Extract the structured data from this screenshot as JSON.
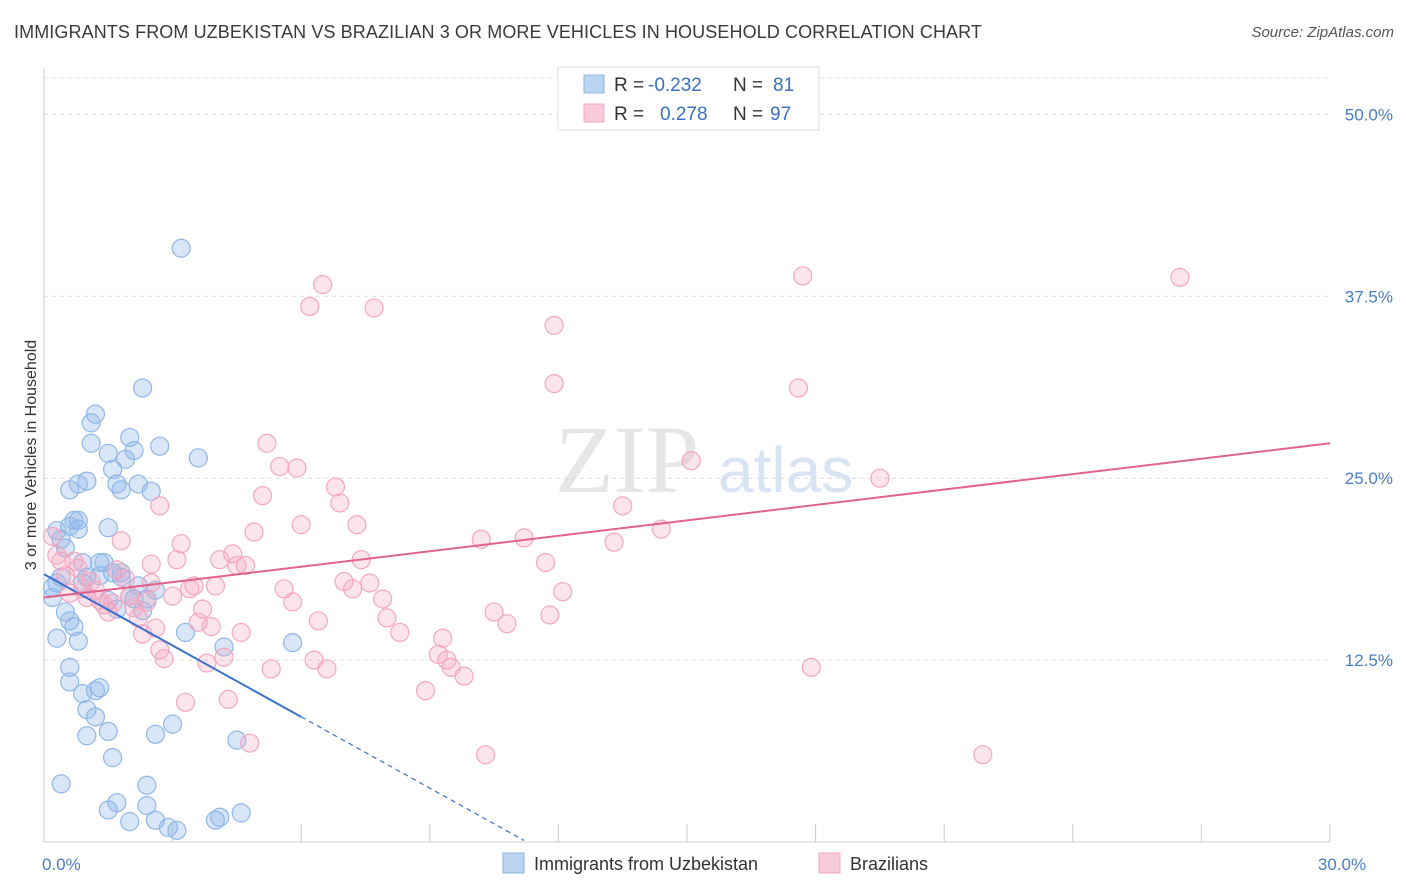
{
  "title": "IMMIGRANTS FROM UZBEKISTAN VS BRAZILIAN 3 OR MORE VEHICLES IN HOUSEHOLD CORRELATION CHART",
  "source": "Source: ZipAtlas.com",
  "watermark": {
    "zip": "ZIP",
    "atlas": "atlas"
  },
  "chart_data": {
    "type": "scatter",
    "ylabel": "3 or more Vehicles in Household",
    "xlim": [
      0,
      30
    ],
    "ylim": [
      0,
      52.5
    ],
    "x_ticks": [
      0,
      3,
      6,
      9,
      12,
      15,
      18,
      21,
      24,
      27,
      30
    ],
    "x_tick_labels": {
      "0": "0.0%",
      "30": "30.0%"
    },
    "y_ticks": [
      12.5,
      25.0,
      37.5,
      50.0
    ],
    "y_tick_labels": [
      "12.5%",
      "25.0%",
      "37.5%",
      "50.0%"
    ],
    "grid": true,
    "legend_position": "top-center",
    "legend": [
      {
        "r_label": "R =",
        "r_value": "-0.232",
        "n_label": "N =",
        "n_value": "81"
      },
      {
        "r_label": "R =",
        "r_value": "0.278",
        "n_label": "N =",
        "n_value": "97"
      }
    ],
    "series": [
      {
        "name": "Immigrants from Uzbekistan",
        "color": "#8fb7e8",
        "line_color": "#3b72cc",
        "trend": {
          "x0": 0,
          "y0": 18.4,
          "x1": 6.0,
          "y1": 8.6,
          "dash_to_x": 11.2
        },
        "points": [
          [
            0.2,
            17.5
          ],
          [
            0.3,
            17.8
          ],
          [
            0.2,
            16.8
          ],
          [
            0.4,
            20.8
          ],
          [
            0.3,
            21.4
          ],
          [
            0.5,
            20.2
          ],
          [
            0.4,
            18.2
          ],
          [
            0.6,
            21.7
          ],
          [
            0.7,
            22.1
          ],
          [
            0.8,
            22.1
          ],
          [
            0.8,
            21.5
          ],
          [
            0.9,
            19.2
          ],
          [
            0.6,
            24.2
          ],
          [
            0.8,
            24.6
          ],
          [
            1.0,
            24.8
          ],
          [
            1.1,
            27.4
          ],
          [
            1.1,
            28.8
          ],
          [
            1.2,
            29.4
          ],
          [
            1.3,
            19.2
          ],
          [
            1.4,
            19.2
          ],
          [
            1.5,
            21.6
          ],
          [
            1.6,
            25.6
          ],
          [
            1.5,
            26.7
          ],
          [
            1.9,
            26.3
          ],
          [
            1.7,
            24.6
          ],
          [
            1.8,
            24.2
          ],
          [
            2.0,
            27.8
          ],
          [
            2.1,
            26.9
          ],
          [
            2.2,
            24.6
          ],
          [
            2.3,
            31.2
          ],
          [
            2.5,
            24.1
          ],
          [
            2.7,
            27.2
          ],
          [
            3.2,
            40.8
          ],
          [
            3.6,
            26.4
          ],
          [
            0.3,
            14.0
          ],
          [
            0.5,
            15.8
          ],
          [
            0.6,
            15.2
          ],
          [
            0.7,
            14.8
          ],
          [
            0.8,
            13.8
          ],
          [
            0.6,
            12.0
          ],
          [
            0.6,
            11.0
          ],
          [
            0.9,
            10.2
          ],
          [
            1.0,
            9.1
          ],
          [
            1.2,
            10.4
          ],
          [
            1.3,
            10.6
          ],
          [
            1.2,
            8.6
          ],
          [
            1.5,
            7.6
          ],
          [
            1.0,
            7.3
          ],
          [
            1.6,
            5.8
          ],
          [
            0.4,
            4.0
          ],
          [
            1.7,
            2.7
          ],
          [
            1.5,
            2.2
          ],
          [
            2.0,
            1.4
          ],
          [
            2.4,
            2.5
          ],
          [
            2.4,
            3.9
          ],
          [
            2.6,
            1.5
          ],
          [
            2.9,
            1.0
          ],
          [
            3.1,
            0.8
          ],
          [
            4.0,
            1.5
          ],
          [
            4.1,
            1.7
          ],
          [
            4.6,
            2.0
          ],
          [
            2.6,
            7.4
          ],
          [
            3.0,
            8.1
          ],
          [
            4.5,
            7.0
          ],
          [
            1.3,
            18.3
          ],
          [
            1.6,
            18.5
          ],
          [
            1.8,
            18.5
          ],
          [
            1.8,
            18.2
          ],
          [
            2.1,
            16.7
          ],
          [
            2.3,
            15.9
          ],
          [
            2.4,
            16.7
          ],
          [
            3.3,
            14.4
          ],
          [
            4.2,
            13.4
          ],
          [
            5.8,
            13.7
          ],
          [
            2.6,
            17.3
          ],
          [
            1.5,
            16.6
          ],
          [
            1.7,
            16.0
          ],
          [
            2.0,
            16.9
          ],
          [
            1.0,
            18.2
          ],
          [
            0.9,
            17.8
          ],
          [
            2.2,
            17.6
          ]
        ]
      },
      {
        "name": "Brazilians",
        "color": "#f4a7c1",
        "line_color": "#e0638f",
        "trend": {
          "x0": 0,
          "y0": 16.8,
          "x1": 30,
          "y1": 27.4
        },
        "points": [
          [
            0.2,
            21.0
          ],
          [
            0.3,
            19.7
          ],
          [
            0.4,
            19.3
          ],
          [
            0.5,
            18.3
          ],
          [
            0.6,
            17.1
          ],
          [
            0.7,
            19.3
          ],
          [
            0.8,
            18.8
          ],
          [
            0.9,
            17.4
          ],
          [
            1.0,
            16.8
          ],
          [
            1.1,
            17.9
          ],
          [
            1.2,
            17.3
          ],
          [
            1.3,
            16.6
          ],
          [
            1.4,
            16.3
          ],
          [
            1.5,
            15.8
          ],
          [
            1.6,
            16.4
          ],
          [
            1.7,
            18.7
          ],
          [
            1.8,
            20.7
          ],
          [
            1.9,
            18.1
          ],
          [
            2.0,
            16.9
          ],
          [
            2.1,
            16.1
          ],
          [
            2.2,
            15.4
          ],
          [
            2.3,
            14.3
          ],
          [
            2.4,
            16.5
          ],
          [
            2.5,
            19.1
          ],
          [
            2.6,
            14.7
          ],
          [
            2.7,
            13.2
          ],
          [
            2.8,
            12.6
          ],
          [
            3.0,
            16.9
          ],
          [
            3.1,
            19.4
          ],
          [
            3.2,
            20.5
          ],
          [
            3.3,
            9.6
          ],
          [
            3.4,
            17.4
          ],
          [
            3.5,
            17.6
          ],
          [
            3.6,
            15.1
          ],
          [
            3.7,
            16.0
          ],
          [
            3.8,
            12.3
          ],
          [
            3.9,
            14.8
          ],
          [
            4.0,
            17.6
          ],
          [
            4.1,
            19.4
          ],
          [
            4.2,
            12.7
          ],
          [
            4.3,
            9.8
          ],
          [
            4.4,
            19.8
          ],
          [
            4.5,
            19.0
          ],
          [
            4.6,
            14.4
          ],
          [
            4.7,
            19.0
          ],
          [
            4.8,
            6.8
          ],
          [
            4.9,
            21.3
          ],
          [
            5.1,
            23.8
          ],
          [
            5.2,
            27.4
          ],
          [
            5.3,
            11.9
          ],
          [
            5.5,
            25.8
          ],
          [
            5.6,
            17.4
          ],
          [
            5.8,
            16.5
          ],
          [
            5.9,
            25.7
          ],
          [
            6.0,
            21.8
          ],
          [
            6.2,
            36.8
          ],
          [
            6.3,
            12.5
          ],
          [
            6.4,
            15.2
          ],
          [
            6.5,
            38.3
          ],
          [
            6.6,
            11.9
          ],
          [
            6.8,
            24.4
          ],
          [
            6.9,
            23.3
          ],
          [
            7.0,
            17.9
          ],
          [
            7.2,
            17.4
          ],
          [
            7.3,
            21.8
          ],
          [
            7.4,
            19.4
          ],
          [
            7.6,
            17.8
          ],
          [
            7.7,
            36.7
          ],
          [
            7.9,
            16.7
          ],
          [
            8.0,
            15.4
          ],
          [
            2.7,
            23.1
          ],
          [
            2.5,
            17.8
          ],
          [
            8.3,
            14.4
          ],
          [
            8.9,
            10.4
          ],
          [
            9.2,
            12.9
          ],
          [
            9.3,
            14.0
          ],
          [
            9.4,
            12.5
          ],
          [
            9.5,
            12.0
          ],
          [
            9.8,
            11.4
          ],
          [
            10.2,
            20.8
          ],
          [
            10.3,
            6.0
          ],
          [
            10.5,
            15.8
          ],
          [
            10.8,
            15.0
          ],
          [
            11.2,
            20.9
          ],
          [
            11.7,
            19.2
          ],
          [
            11.8,
            15.6
          ],
          [
            11.9,
            31.5
          ],
          [
            11.9,
            35.5
          ],
          [
            12.1,
            17.2
          ],
          [
            13.3,
            20.6
          ],
          [
            13.5,
            23.1
          ],
          [
            14.4,
            21.5
          ],
          [
            15.1,
            26.2
          ],
          [
            17.6,
            31.2
          ],
          [
            17.7,
            38.9
          ],
          [
            17.9,
            12.0
          ],
          [
            19.5,
            25.0
          ],
          [
            21.9,
            6.0
          ],
          [
            26.5,
            38.8
          ]
        ]
      }
    ]
  },
  "bottom_legend": [
    "Immigrants from Uzbekistan",
    "Brazilians"
  ]
}
